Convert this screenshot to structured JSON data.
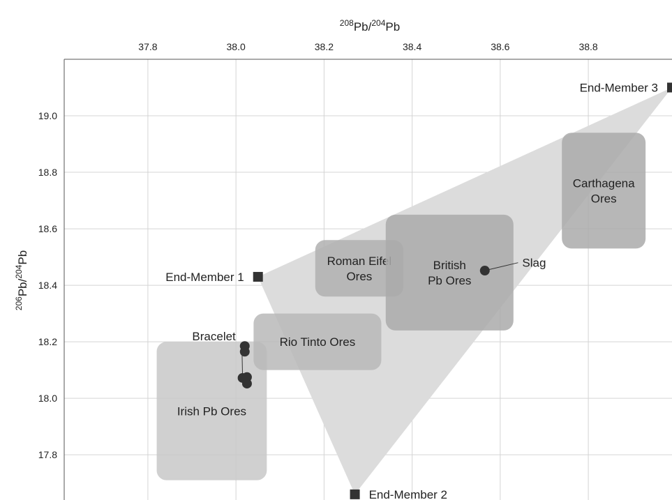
{
  "chart_data": {
    "type": "scatter",
    "xlabel": {
      "sup1": "208",
      "base1": "Pb/",
      "sup2": "204",
      "base2": "Pb"
    },
    "ylabel": {
      "sup1": "206",
      "base1": "Pb/",
      "sup2": "204",
      "base2": "Pb"
    },
    "x_axis_position": "top",
    "xlim": [
      37.61,
      38.99
    ],
    "ylim": [
      17.64,
      19.2
    ],
    "x_ticks": [
      37.8,
      38.0,
      38.2,
      38.4,
      38.6,
      38.8
    ],
    "x_tick_labels": [
      "37.8",
      "38.0",
      "38.2",
      "38.4",
      "38.6",
      "38.8"
    ],
    "y_ticks": [
      17.8,
      18.0,
      18.2,
      18.4,
      18.6,
      18.8,
      19.0
    ],
    "y_tick_labels": [
      "17.8",
      "18.0",
      "18.2",
      "18.4",
      "18.6",
      "18.8",
      "19.0"
    ],
    "grid": true,
    "mixing_triangle": [
      [
        38.05,
        18.43
      ],
      [
        38.27,
        17.66
      ],
      [
        38.99,
        19.1
      ]
    ],
    "end_members": [
      {
        "label": "End-Member 1",
        "x": 38.05,
        "y": 18.43,
        "label_side": "left"
      },
      {
        "label": "End-Member 2",
        "x": 38.27,
        "y": 17.66,
        "label_side": "right"
      },
      {
        "label": "End-Member 3",
        "x": 38.99,
        "y": 19.1,
        "label_side": "left"
      }
    ],
    "regions": [
      {
        "label_lines": [
          "Irish Pb Ores"
        ],
        "x0": 37.82,
        "x1": 38.07,
        "y0": 17.71,
        "y1": 18.2,
        "color": "#c8c8c8"
      },
      {
        "label_lines": [
          "Rio Tinto Ores"
        ],
        "x0": 38.04,
        "x1": 38.33,
        "y0": 18.1,
        "y1": 18.3,
        "color": "#b8b8b8"
      },
      {
        "label_lines": [
          "Roman Eifel",
          "Ores"
        ],
        "x0": 38.18,
        "x1": 38.38,
        "y0": 18.36,
        "y1": 18.56,
        "color": "#b0b0b0"
      },
      {
        "label_lines": [
          "British",
          "Pb Ores"
        ],
        "x0": 38.34,
        "x1": 38.63,
        "y0": 18.24,
        "y1": 18.65,
        "color": "#aaaaaa"
      },
      {
        "label_lines": [
          "Carthagena",
          "Ores"
        ],
        "x0": 38.74,
        "x1": 38.93,
        "y0": 18.53,
        "y1": 18.94,
        "color": "#aaaaaa"
      }
    ],
    "series": [
      {
        "name": "Bracelet",
        "points": [
          [
            38.02,
            18.185
          ],
          [
            38.02,
            18.165
          ],
          [
            38.015,
            18.072
          ],
          [
            38.025,
            18.075
          ],
          [
            38.025,
            18.052
          ]
        ]
      },
      {
        "name": "Slag",
        "points": [
          [
            38.565,
            18.452
          ]
        ]
      }
    ],
    "annotations": [
      {
        "text": "Bracelet",
        "x": 37.95,
        "y": 18.22,
        "points_to_series": "Bracelet"
      },
      {
        "text": "Slag",
        "x": 38.65,
        "y": 18.48,
        "points_to_series": "Slag"
      }
    ],
    "colors": {
      "marker": "#333333",
      "triangle": "#dcdcdc",
      "grid": "#d4d4d4",
      "axis": "#555555"
    }
  }
}
